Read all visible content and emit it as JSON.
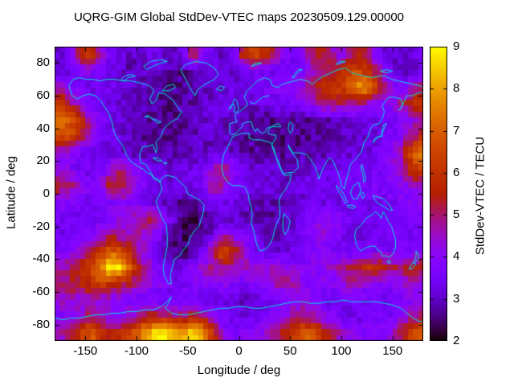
{
  "title": "UQRG-GIM Global StdDev-VTEC maps 20230509.129.00000",
  "chart_data": {
    "type": "heatmap",
    "title": "UQRG-GIM Global StdDev-VTEC maps 20230509.129.00000",
    "xlabel": "Longitude / deg",
    "ylabel": "Latitude / deg",
    "colorbar_label": "StdDev-VTEC / TECU",
    "units": "TECU",
    "xlim": [
      -180,
      180
    ],
    "ylim": [
      -90,
      90
    ],
    "zlim": [
      2,
      9
    ],
    "x_ticks": [
      -150,
      -100,
      -50,
      0,
      50,
      100,
      150
    ],
    "y_ticks": [
      80,
      60,
      40,
      20,
      0,
      -20,
      -40,
      -60,
      -80
    ],
    "colorbar_ticks": [
      2,
      3,
      4,
      5,
      6,
      7,
      8,
      9
    ],
    "palette": "gnuplot black-violet-purple-red-orange-yellow",
    "background_color": "#ffffff",
    "frame_color": "#000000",
    "coastline_color": "#00e0e0",
    "grid": {
      "lon_start": -175,
      "lon_step": 10,
      "lat_start": 85,
      "lat_step": -10,
      "values_tecu": [
        [
          3.2,
          3.4,
          5.5,
          6.0,
          4.5,
          3.5,
          3.2,
          3.0,
          3.2,
          3.4,
          3.2,
          3.0,
          3.3,
          5.5,
          4.0,
          3.3,
          3.0,
          3.5,
          6.0,
          6.5,
          6.0,
          5.0,
          3.8,
          3.4,
          4.5,
          5.5,
          5.5,
          4.2,
          4.5,
          5.5,
          5.0,
          3.6,
          3.0,
          3.0,
          3.2,
          3.4
        ],
        [
          3.2,
          3.3,
          4.0,
          4.0,
          3.5,
          3.2,
          3.0,
          2.9,
          3.0,
          3.1,
          3.0,
          2.8,
          2.7,
          2.8,
          3.0,
          3.2,
          3.1,
          3.0,
          3.4,
          3.6,
          3.5,
          3.3,
          3.2,
          3.4,
          3.8,
          4.5,
          5.0,
          5.5,
          6.0,
          6.5,
          6.0,
          5.0,
          3.8,
          3.2,
          3.0,
          3.2
        ],
        [
          4.5,
          3.8,
          3.4,
          3.2,
          3.3,
          3.5,
          3.2,
          3.0,
          2.9,
          2.8,
          2.7,
          2.6,
          2.7,
          2.9,
          3.0,
          3.1,
          3.2,
          3.3,
          3.4,
          3.5,
          3.6,
          3.8,
          4.0,
          4.2,
          4.5,
          5.5,
          6.0,
          6.2,
          6.5,
          7.8,
          7.8,
          6.0,
          4.5,
          3.8,
          4.0,
          5.0
        ],
        [
          6.5,
          5.0,
          4.2,
          3.8,
          3.5,
          3.3,
          3.1,
          3.0,
          2.9,
          2.8,
          2.7,
          2.7,
          2.8,
          2.9,
          3.0,
          3.2,
          3.3,
          3.2,
          3.1,
          3.2,
          3.3,
          3.4,
          3.6,
          3.8,
          4.0,
          4.4,
          4.8,
          5.0,
          5.0,
          4.8,
          4.4,
          4.0,
          3.8,
          4.5,
          5.5,
          6.0
        ],
        [
          7.5,
          7.0,
          6.0,
          4.5,
          3.8,
          3.4,
          3.2,
          3.0,
          2.8,
          2.7,
          2.6,
          2.6,
          2.8,
          3.0,
          3.0,
          3.1,
          3.0,
          2.9,
          2.8,
          2.7,
          2.6,
          2.6,
          2.6,
          2.7,
          2.7,
          2.8,
          2.8,
          2.9,
          3.0,
          3.1,
          3.2,
          3.3,
          3.4,
          3.6,
          4.0,
          4.5
        ],
        [
          6.5,
          6.5,
          5.5,
          4.2,
          3.6,
          3.3,
          3.1,
          3.0,
          2.8,
          2.7,
          2.6,
          2.6,
          2.7,
          2.9,
          3.0,
          3.0,
          3.0,
          2.9,
          2.8,
          2.7,
          2.6,
          2.5,
          2.6,
          2.6,
          2.7,
          2.7,
          2.8,
          2.9,
          3.0,
          3.1,
          3.2,
          3.3,
          3.5,
          3.8,
          4.5,
          5.5
        ],
        [
          4.2,
          4.0,
          3.6,
          3.4,
          3.3,
          3.2,
          3.1,
          3.0,
          2.9,
          2.8,
          2.8,
          2.8,
          2.9,
          3.0,
          3.1,
          3.1,
          3.0,
          2.9,
          2.8,
          2.8,
          2.7,
          2.7,
          2.7,
          2.8,
          2.8,
          2.9,
          2.9,
          3.0,
          3.1,
          3.2,
          3.3,
          3.4,
          3.7,
          4.5,
          6.0,
          7.5
        ],
        [
          4.2,
          3.8,
          3.5,
          3.4,
          3.4,
          4.5,
          5.0,
          4.2,
          3.6,
          3.3,
          3.2,
          3.1,
          3.2,
          3.3,
          3.5,
          4.5,
          5.0,
          4.0,
          3.4,
          3.2,
          3.1,
          3.0,
          3.0,
          3.1,
          3.1,
          3.2,
          3.2,
          3.3,
          3.4,
          3.5,
          3.5,
          3.6,
          3.8,
          4.2,
          5.5,
          6.5
        ],
        [
          5.5,
          5.0,
          4.2,
          3.8,
          4.0,
          5.5,
          5.5,
          4.5,
          3.8,
          3.5,
          3.3,
          3.2,
          3.3,
          3.4,
          3.8,
          5.0,
          4.5,
          3.8,
          3.5,
          3.3,
          3.2,
          3.1,
          3.1,
          3.2,
          3.3,
          3.4,
          3.4,
          3.5,
          3.5,
          3.6,
          3.6,
          3.7,
          3.8,
          4.0,
          4.2,
          4.5
        ],
        [
          4.0,
          3.8,
          3.6,
          3.5,
          3.5,
          3.8,
          4.0,
          3.8,
          3.5,
          3.3,
          3.0,
          2.8,
          2.7,
          2.8,
          3.0,
          3.5,
          3.5,
          3.3,
          3.2,
          3.0,
          2.9,
          2.9,
          3.0,
          3.1,
          3.2,
          3.3,
          3.3,
          3.3,
          3.4,
          3.4,
          3.4,
          3.5,
          3.5,
          3.6,
          3.8,
          4.0
        ],
        [
          3.6,
          3.5,
          3.4,
          3.4,
          3.5,
          3.8,
          4.2,
          4.5,
          5.0,
          5.5,
          4.5,
          3.2,
          2.6,
          2.4,
          2.6,
          3.0,
          3.2,
          3.0,
          2.9,
          2.8,
          2.8,
          2.8,
          3.0,
          3.2,
          3.5,
          4.0,
          4.2,
          4.0,
          3.6,
          3.4,
          3.3,
          3.3,
          3.4,
          3.5,
          3.6,
          3.6
        ],
        [
          3.5,
          3.5,
          3.6,
          3.9,
          4.4,
          4.8,
          4.6,
          4.4,
          4.6,
          4.2,
          3.4,
          2.8,
          2.4,
          2.3,
          2.6,
          3.2,
          4.5,
          4.0,
          3.8,
          3.4,
          3.0,
          3.0,
          3.0,
          3.2,
          3.5,
          4.2,
          4.2,
          3.8,
          3.4,
          3.3,
          3.4,
          3.5,
          3.6,
          3.6,
          3.5,
          3.5
        ],
        [
          3.8,
          4.0,
          4.5,
          5.5,
          6.0,
          7.0,
          6.5,
          5.5,
          4.5,
          3.8,
          3.0,
          2.6,
          2.4,
          2.8,
          3.5,
          5.0,
          7.0,
          5.5,
          4.2,
          3.5,
          3.2,
          3.1,
          3.2,
          3.4,
          3.6,
          3.8,
          3.8,
          3.6,
          3.4,
          3.4,
          3.5,
          3.6,
          3.6,
          3.6,
          3.6,
          3.7
        ],
        [
          4.5,
          5.0,
          5.5,
          6.5,
          7.5,
          9.0,
          8.5,
          6.5,
          5.0,
          4.2,
          3.6,
          3.2,
          3.4,
          4.0,
          4.5,
          4.8,
          5.0,
          4.8,
          4.6,
          4.5,
          4.5,
          4.5,
          4.2,
          4.0,
          3.8,
          4.0,
          4.2,
          4.5,
          5.0,
          5.5,
          6.0,
          6.0,
          5.5,
          5.0,
          5.5,
          5.5
        ],
        [
          5.0,
          5.2,
          5.5,
          6.0,
          6.5,
          6.0,
          5.5,
          5.0,
          4.5,
          4.2,
          3.8,
          3.6,
          3.6,
          3.8,
          4.0,
          4.2,
          4.0,
          3.8,
          3.6,
          3.8,
          4.2,
          4.5,
          5.0,
          4.5,
          4.0,
          3.8,
          3.8,
          4.0,
          4.5,
          4.5,
          4.0,
          3.8,
          3.8,
          4.0,
          4.5,
          4.5
        ],
        [
          4.5,
          4.5,
          4.2,
          4.5,
          4.2,
          4.0,
          3.8,
          3.8,
          3.6,
          3.5,
          3.4,
          3.4,
          3.5,
          3.6,
          3.2,
          3.1,
          3.2,
          3.2,
          3.0,
          3.0,
          3.2,
          3.4,
          3.5,
          4.0,
          4.2,
          3.5,
          3.4,
          3.4,
          3.5,
          3.6,
          3.6,
          3.5,
          3.4,
          3.5,
          3.8,
          4.0
        ],
        [
          3.8,
          4.0,
          4.5,
          5.0,
          4.5,
          4.2,
          4.2,
          4.5,
          5.0,
          5.5,
          5.5,
          5.0,
          5.0,
          5.5,
          5.0,
          4.2,
          3.6,
          3.4,
          3.3,
          3.4,
          3.6,
          4.0,
          4.5,
          4.8,
          5.0,
          4.5,
          4.0,
          3.6,
          3.4,
          3.4,
          3.4,
          3.5,
          3.6,
          4.0,
          4.5,
          5.0
        ],
        [
          4.5,
          5.0,
          6.0,
          7.0,
          6.0,
          5.5,
          5.8,
          6.5,
          7.5,
          8.5,
          9.0,
          8.5,
          8.0,
          8.5,
          8.0,
          6.0,
          4.2,
          3.8,
          3.8,
          3.9,
          4.2,
          4.8,
          5.5,
          6.5,
          7.0,
          6.5,
          5.5,
          4.8,
          4.2,
          4.0,
          3.8,
          3.8,
          4.0,
          4.8,
          6.0,
          7.0
        ]
      ]
    }
  }
}
